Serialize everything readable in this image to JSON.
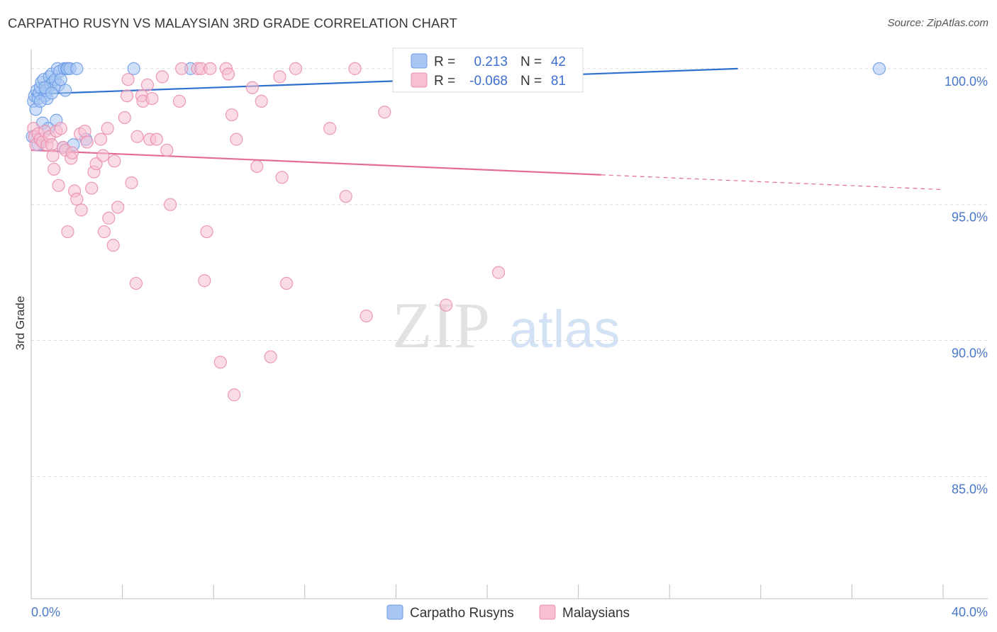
{
  "title": "CARPATHO RUSYN VS MALAYSIAN 3RD GRADE CORRELATION CHART",
  "source": "Source: ZipAtlas.com",
  "watermark": {
    "zip": "ZIP",
    "atlas": "atlas"
  },
  "chart_data": {
    "type": "scatter",
    "title": "CARPATHO RUSYN VS MALAYSIAN 3RD GRADE CORRELATION CHART",
    "xlabel": "",
    "ylabel": "3rd Grade",
    "xlim": [
      0,
      40
    ],
    "ylim": [
      80.5,
      100.7
    ],
    "x_tick_labels": [
      {
        "value": 0,
        "label": "0.0%"
      },
      {
        "value": 40,
        "label": "40.0%"
      }
    ],
    "y_tick_labels": [
      {
        "value": 100,
        "label": "100.0%"
      },
      {
        "value": 95,
        "label": "95.0%"
      },
      {
        "value": 90,
        "label": "90.0%"
      },
      {
        "value": 85,
        "label": "85.0%"
      }
    ],
    "grid": true,
    "legend_position": "top-center",
    "series": [
      {
        "name": "Carpatho Rusyns",
        "color": "#6e9de6",
        "fill": "#a8c6f2",
        "line_color": "#2f6fd0",
        "R": "0.213",
        "N": "42",
        "trend": {
          "x0": 0,
          "y0": 99.06,
          "x1": 31.0,
          "y1": 100.0,
          "x_solid_end": 31.0
        },
        "points": [
          [
            0.1,
            98.8
          ],
          [
            0.15,
            99.0
          ],
          [
            0.2,
            98.5
          ],
          [
            0.25,
            99.2
          ],
          [
            0.3,
            98.9
          ],
          [
            0.35,
            99.1
          ],
          [
            0.4,
            99.3
          ],
          [
            0.45,
            99.5
          ],
          [
            0.5,
            98.0
          ],
          [
            0.55,
            99.6
          ],
          [
            0.6,
            99.0
          ],
          [
            0.65,
            99.2
          ],
          [
            0.7,
            98.9
          ],
          [
            0.75,
            97.8
          ],
          [
            0.8,
            99.7
          ],
          [
            0.85,
            99.4
          ],
          [
            0.9,
            99.8
          ],
          [
            0.95,
            99.5
          ],
          [
            1.0,
            99.3
          ],
          [
            1.05,
            99.6
          ],
          [
            1.1,
            98.1
          ],
          [
            1.15,
            100.0
          ],
          [
            1.2,
            99.4
          ],
          [
            1.25,
            99.9
          ],
          [
            1.3,
            99.6
          ],
          [
            1.4,
            97.1
          ],
          [
            1.45,
            100.0
          ],
          [
            1.5,
            99.2
          ],
          [
            1.55,
            100.0
          ],
          [
            1.6,
            100.0
          ],
          [
            1.7,
            100.0
          ],
          [
            1.85,
            97.2
          ],
          [
            2.0,
            100.0
          ],
          [
            2.4,
            97.4
          ],
          [
            4.5,
            100.0
          ],
          [
            7.0,
            100.0
          ],
          [
            37.2,
            100.0
          ],
          [
            0.05,
            97.5
          ],
          [
            0.3,
            97.2
          ],
          [
            0.4,
            98.8
          ],
          [
            0.6,
            99.3
          ],
          [
            0.9,
            99.1
          ]
        ]
      },
      {
        "name": "Malaysians",
        "color": "#e98fb0",
        "fill": "#f6bfd2",
        "line_color": "#e46b96",
        "R": "-0.068",
        "N": "81",
        "trend": {
          "x0": 0,
          "y0": 97.0,
          "x1": 40,
          "y1": 95.55,
          "x_solid_end": 25.0
        },
        "points": [
          [
            0.1,
            97.8
          ],
          [
            0.15,
            97.5
          ],
          [
            0.2,
            97.2
          ],
          [
            0.3,
            97.6
          ],
          [
            0.4,
            97.4
          ],
          [
            0.5,
            97.3
          ],
          [
            0.6,
            97.7
          ],
          [
            0.7,
            97.2
          ],
          [
            0.8,
            97.5
          ],
          [
            0.9,
            97.2
          ],
          [
            0.95,
            96.8
          ],
          [
            1.0,
            96.3
          ],
          [
            1.1,
            97.7
          ],
          [
            1.2,
            95.7
          ],
          [
            1.3,
            97.8
          ],
          [
            1.4,
            97.1
          ],
          [
            1.5,
            97.0
          ],
          [
            1.6,
            94.0
          ],
          [
            1.75,
            96.7
          ],
          [
            1.8,
            96.9
          ],
          [
            1.9,
            95.5
          ],
          [
            2.0,
            95.2
          ],
          [
            2.15,
            97.6
          ],
          [
            2.2,
            94.8
          ],
          [
            2.35,
            97.7
          ],
          [
            2.45,
            97.3
          ],
          [
            2.65,
            95.6
          ],
          [
            2.75,
            96.2
          ],
          [
            2.85,
            96.5
          ],
          [
            3.05,
            97.4
          ],
          [
            3.15,
            96.8
          ],
          [
            3.2,
            94.0
          ],
          [
            3.35,
            97.8
          ],
          [
            3.4,
            94.5
          ],
          [
            3.6,
            93.5
          ],
          [
            3.65,
            96.6
          ],
          [
            3.8,
            94.9
          ],
          [
            4.1,
            98.2
          ],
          [
            4.2,
            99.0
          ],
          [
            4.25,
            99.6
          ],
          [
            4.4,
            95.8
          ],
          [
            4.6,
            92.1
          ],
          [
            4.65,
            97.5
          ],
          [
            4.85,
            99.0
          ],
          [
            4.9,
            98.8
          ],
          [
            5.1,
            99.4
          ],
          [
            5.2,
            97.4
          ],
          [
            5.3,
            98.9
          ],
          [
            5.5,
            97.4
          ],
          [
            5.75,
            99.7
          ],
          [
            5.95,
            97.0
          ],
          [
            6.1,
            95.0
          ],
          [
            6.5,
            98.8
          ],
          [
            6.6,
            100.0
          ],
          [
            7.3,
            100.0
          ],
          [
            7.45,
            100.0
          ],
          [
            7.6,
            92.2
          ],
          [
            7.7,
            94.0
          ],
          [
            7.85,
            100.0
          ],
          [
            8.3,
            89.2
          ],
          [
            8.55,
            100.0
          ],
          [
            8.65,
            99.8
          ],
          [
            8.9,
            88.0
          ],
          [
            8.8,
            98.3
          ],
          [
            9.0,
            97.4
          ],
          [
            9.7,
            99.3
          ],
          [
            9.9,
            96.4
          ],
          [
            10.1,
            98.8
          ],
          [
            10.5,
            89.4
          ],
          [
            10.9,
            99.7
          ],
          [
            11.0,
            96.0
          ],
          [
            11.2,
            92.1
          ],
          [
            11.6,
            100.0
          ],
          [
            13.1,
            97.8
          ],
          [
            13.8,
            95.3
          ],
          [
            14.2,
            100.0
          ],
          [
            14.7,
            90.9
          ],
          [
            15.5,
            98.4
          ],
          [
            16.4,
            100.0
          ],
          [
            18.2,
            91.3
          ],
          [
            20.5,
            92.5
          ]
        ]
      }
    ]
  },
  "legend": {
    "items": [
      {
        "label": "Carpatho Rusyns",
        "r_label": "R =",
        "r_value": "0.213",
        "n_label": "N =",
        "n_value": "42"
      },
      {
        "label": "Malaysians",
        "r_label": "R =",
        "r_value": "-0.068",
        "n_label": "N =",
        "n_value": "81"
      }
    ]
  }
}
